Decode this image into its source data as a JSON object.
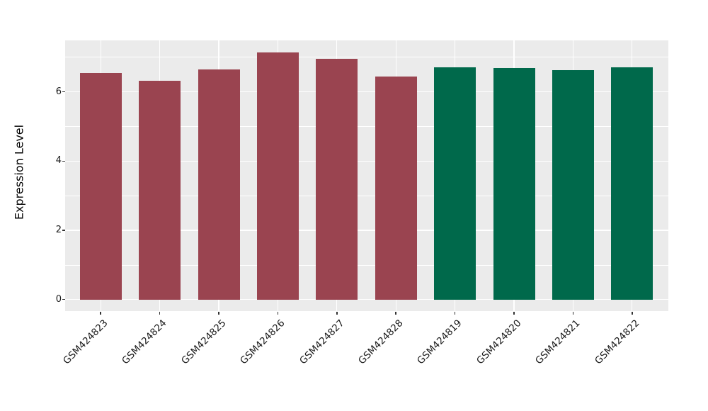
{
  "chart_data": {
    "type": "bar",
    "title": "",
    "xlabel": "",
    "ylabel": "Expression Level",
    "categories": [
      "GSM424823",
      "GSM424824",
      "GSM424825",
      "GSM424826",
      "GSM424827",
      "GSM424828",
      "GSM424819",
      "GSM424820",
      "GSM424821",
      "GSM424822"
    ],
    "values": [
      6.55,
      6.32,
      6.65,
      7.14,
      6.95,
      6.45,
      6.71,
      6.68,
      6.63,
      6.71
    ],
    "bar_colors": [
      "#9A4450",
      "#9A4450",
      "#9A4450",
      "#9A4450",
      "#9A4450",
      "#9A4450",
      "#00694B",
      "#00694B",
      "#00694B",
      "#00694B"
    ],
    "yticks_major": [
      0,
      2,
      4,
      6
    ],
    "yticks_minor": [
      1,
      3,
      5,
      7
    ],
    "ylim": [
      0,
      7.5
    ],
    "grid": true,
    "legend": false,
    "x_label_rotation_deg": 45,
    "panel_bg": "#EBEBEB",
    "grid_color": "#FFFFFF",
    "tick_color": "#333333",
    "text_color": "#1a1a1a"
  }
}
